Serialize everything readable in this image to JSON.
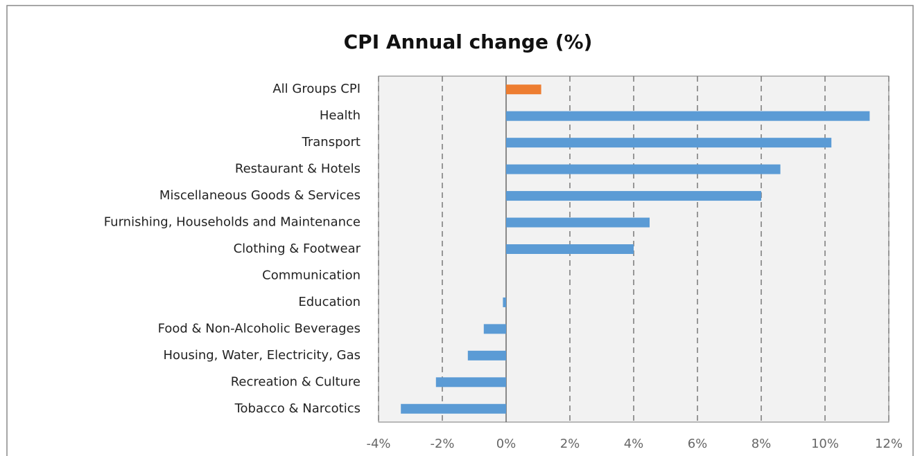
{
  "chart_data": {
    "type": "hbar",
    "title": "CPI Annual change (%)",
    "categories": [
      "All Groups CPI",
      "Health",
      "Transport",
      "Restaurant & Hotels",
      "Miscellaneous Goods & Services",
      "Furnishing, Households and Maintenance",
      "Clothing & Footwear",
      "Communication",
      "Education",
      "Food & Non-Alcoholic Beverages",
      "Housing, Water, Electricity, Gas",
      "Recreation & Culture",
      "Tobacco & Narcotics"
    ],
    "values": [
      1.1,
      11.4,
      10.2,
      8.6,
      8.0,
      4.5,
      4.0,
      0,
      -0.1,
      -0.7,
      -1.2,
      -2.2,
      -3.3
    ],
    "colors": [
      "#ed7d31",
      "#5b9bd5",
      "#5b9bd5",
      "#5b9bd5",
      "#5b9bd5",
      "#5b9bd5",
      "#5b9bd5",
      "#5b9bd5",
      "#5b9bd5",
      "#5b9bd5",
      "#5b9bd5",
      "#5b9bd5",
      "#5b9bd5"
    ],
    "xlim": [
      -4,
      12
    ],
    "xticks": [
      {
        "value": -4,
        "label": "-4%"
      },
      {
        "value": -2,
        "label": "-2%"
      },
      {
        "value": 0,
        "label": "0%"
      },
      {
        "value": 2,
        "label": "2%"
      },
      {
        "value": 4,
        "label": "4%"
      },
      {
        "value": 6,
        "label": "6%"
      },
      {
        "value": 8,
        "label": "8%"
      },
      {
        "value": 10,
        "label": "10%"
      },
      {
        "value": 12,
        "label": "12%"
      }
    ],
    "grid": true
  }
}
